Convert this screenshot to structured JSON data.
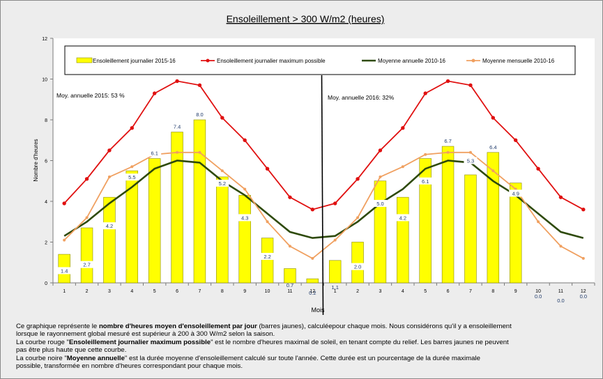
{
  "chart_data": {
    "type": "bar",
    "title": "Ensoleillement  > 300 W/m2 (heures)",
    "xlabel": "Mois",
    "ylabel": "Nombre d'heures",
    "ylim": [
      0,
      12
    ],
    "yticks": [
      0,
      2,
      4,
      6,
      8,
      10,
      12
    ],
    "grid": false,
    "legend_position": "top",
    "categories": [
      "1",
      "2",
      "3",
      "4",
      "5",
      "6",
      "7",
      "8",
      "9",
      "10",
      "11",
      "12",
      "1",
      "2",
      "3",
      "4",
      "5",
      "6",
      "7",
      "8",
      "9",
      "10",
      "11",
      "12"
    ],
    "series": [
      {
        "name": "Ensoleillement journalier 2015-16",
        "kind": "bar",
        "color": "#ffff00",
        "values": [
          1.4,
          2.7,
          4.2,
          5.5,
          6.1,
          7.4,
          8.0,
          5.2,
          4.3,
          2.2,
          0.7,
          0.2,
          1.1,
          2.0,
          5.0,
          4.2,
          6.1,
          6.7,
          5.3,
          6.4,
          4.9,
          0.0,
          0.0,
          0.0
        ],
        "labels": [
          "1.4",
          "2.7",
          "4.2",
          "5.5",
          "6.1",
          "7.4",
          "8.0",
          "5.2",
          "4.3",
          "2.2",
          "0.7",
          "0.2",
          "1.1",
          "2.0",
          "5.0",
          "4.2",
          "6.1",
          "6.7",
          "5.3",
          "6.4",
          "4.9",
          "0.0",
          "0.0",
          "0.0"
        ]
      },
      {
        "name": "Ensoleillement journalier maximum possible",
        "kind": "line",
        "color": "#e01010",
        "marker": true,
        "values": [
          3.9,
          5.1,
          6.5,
          7.6,
          9.3,
          9.9,
          9.7,
          8.1,
          7.0,
          5.6,
          4.2,
          3.6,
          3.9,
          5.1,
          6.5,
          7.6,
          9.3,
          9.9,
          9.7,
          8.1,
          7.0,
          5.6,
          4.2,
          3.6
        ]
      },
      {
        "name": "Moyenne annuelle 2010-16",
        "kind": "line",
        "color": "#2e4a0a",
        "marker": false,
        "values": [
          2.3,
          3.0,
          3.9,
          4.7,
          5.6,
          6.0,
          5.9,
          5.0,
          4.3,
          3.4,
          2.5,
          2.2,
          2.3,
          3.0,
          3.9,
          4.6,
          5.6,
          6.0,
          5.9,
          5.0,
          4.3,
          3.4,
          2.5,
          2.2
        ]
      },
      {
        "name": "Moyenne mensuelle 2010-16",
        "kind": "line",
        "color": "#f0a060",
        "marker": true,
        "values": [
          2.1,
          3.2,
          5.2,
          5.7,
          6.3,
          6.4,
          6.4,
          5.5,
          4.6,
          3.0,
          1.8,
          1.2,
          2.1,
          3.2,
          5.2,
          5.7,
          6.3,
          6.4,
          6.4,
          5.5,
          4.6,
          3.0,
          1.8,
          1.2
        ]
      }
    ],
    "annotations": [
      "Moy. annuelle 2015: 53 %",
      "Moy. annuelle 2016:  32%"
    ]
  },
  "caption": [
    [
      {
        "t": "Ce graphique  représente le "
      },
      {
        "t": "nombre d'heures moyen d'ensoleillement par jour",
        "b": true
      },
      {
        "t": " (barres  jaunes), calculéepour chaque mois. Nous considérons qu'il y a ensoleillement"
      }
    ],
    [
      {
        "t": "lorsque le rayonnement global mesuré est supérieur à 200 à 300 W/m2 selon la saison."
      }
    ],
    [
      {
        "t": "La courbe rouge \""
      },
      {
        "t": "Ensoleillement journalier  maximum possible",
        "b": true
      },
      {
        "t": "\" est le  nombre d'heures maximal de soleil, en tenant compte du relief. Les barres jaunes ne peuvent"
      }
    ],
    [
      {
        "t": "pas être plus haute que cette courbe."
      }
    ],
    [
      {
        "t": "La courbe noire \""
      },
      {
        "t": "Moyenne annuelle",
        "b": true
      },
      {
        "t": "\" est la durée moyenne d'ensoleillement  calculé sur toute l'année. Cette durée est un pourcentage de la durée maximale"
      }
    ],
    [
      {
        "t": "possible, transformée en nombre d'heures correspondant pour chaque mois."
      }
    ]
  ]
}
